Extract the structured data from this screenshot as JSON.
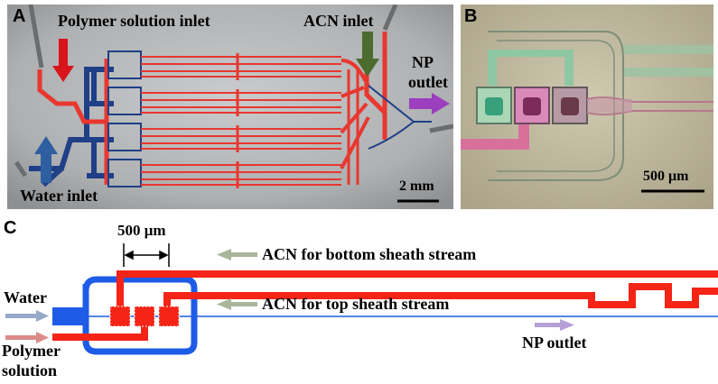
{
  "panels": {
    "a": {
      "letter": "A",
      "labels": {
        "polymer_inlet": "Polymer solution inlet",
        "acn_inlet": "ACN inlet",
        "np_outlet_line1": "NP",
        "np_outlet_line2": "outlet",
        "water_inlet": "Water inlet",
        "scale": "2 mm"
      }
    },
    "b": {
      "letter": "B",
      "labels": {
        "scale": "500 μm"
      }
    },
    "c": {
      "letter": "C",
      "labels": {
        "dimension": "500 μm",
        "acn_bottom": "ACN for bottom sheath stream",
        "acn_top": "ACN for top sheath stream",
        "water": "Water",
        "polymer_line1": "Polymer",
        "polymer_line2": "solution",
        "np_outlet": "NP outlet"
      }
    }
  },
  "colors": {
    "polymer": "#e8372f",
    "water": "#1f3f86",
    "arrow_red": "#d9141b",
    "arrow_green": "#4c6b2f",
    "arrow_purple": "#9b3fbf",
    "arrow_blue": "#2e5fa0",
    "schematic_blue": "#1e5ce8",
    "schematic_red": "#f42416",
    "c_arrow_green": "#a9b69a",
    "c_arrow_blue": "#95a9c8",
    "c_arrow_pink": "#dc8a8a",
    "c_arrow_lilac": "#b7a0d8"
  }
}
